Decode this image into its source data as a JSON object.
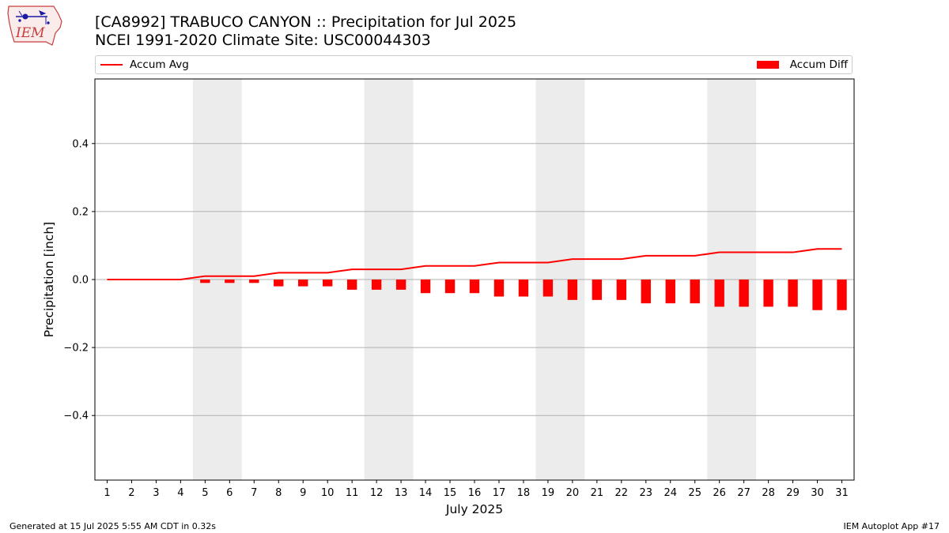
{
  "header": {
    "logo_text": "IEM",
    "title_line1": "[CA8992] TRABUCO CANYON :: Precipitation for Jul 2025",
    "title_line2": "NCEI 1991-2020 Climate Site: USC00044303"
  },
  "legend": {
    "items": [
      {
        "label": "Accum Avg",
        "kind": "line",
        "color": "#ff0000"
      },
      {
        "label": "Accum Diff",
        "kind": "bar",
        "color": "#ff0000"
      }
    ],
    "placement": "top, above plot"
  },
  "footer": {
    "left": "Generated at 15 Jul 2025 5:55 AM CDT in 0.32s",
    "right": "IEM Autoplot App #17"
  },
  "chart_data": {
    "type": "bar",
    "xlabel": "July 2025",
    "ylabel": "Precipitation [inch]",
    "x": [
      1,
      2,
      3,
      4,
      5,
      6,
      7,
      8,
      9,
      10,
      11,
      12,
      13,
      14,
      15,
      16,
      17,
      18,
      19,
      20,
      21,
      22,
      23,
      24,
      25,
      26,
      27,
      28,
      29,
      30,
      31
    ],
    "xticks": [
      "1",
      "2",
      "3",
      "4",
      "5",
      "6",
      "7",
      "8",
      "9",
      "10",
      "11",
      "12",
      "13",
      "14",
      "15",
      "16",
      "17",
      "18",
      "19",
      "20",
      "21",
      "22",
      "23",
      "24",
      "25",
      "26",
      "27",
      "28",
      "29",
      "30",
      "31"
    ],
    "xlim": [
      0.5,
      31.5
    ],
    "ylim": [
      -0.59,
      0.59
    ],
    "yticks": [
      -0.4,
      -0.2,
      0.0,
      0.2,
      0.4
    ],
    "ytick_labels": [
      "−0.4",
      "−0.2",
      "0.0",
      "0.2",
      "0.4"
    ],
    "grid": "horizontal",
    "weekend_shading": {
      "color": "#ececec",
      "ranges": [
        [
          5,
          6
        ],
        [
          12,
          13
        ],
        [
          19,
          20
        ],
        [
          26,
          27
        ]
      ]
    },
    "series": [
      {
        "name": "Accum Avg",
        "type": "line",
        "color": "#ff0000",
        "values": [
          0,
          0,
          0,
          0,
          0.01,
          0.01,
          0.01,
          0.02,
          0.02,
          0.02,
          0.03,
          0.03,
          0.03,
          0.04,
          0.04,
          0.04,
          0.05,
          0.05,
          0.05,
          0.06,
          0.06,
          0.06,
          0.07,
          0.07,
          0.07,
          0.08,
          0.08,
          0.08,
          0.08,
          0.09,
          0.09
        ]
      },
      {
        "name": "Accum Diff",
        "type": "bar",
        "color": "#ff0000",
        "values": [
          0,
          0,
          0,
          0,
          -0.01,
          -0.01,
          -0.01,
          -0.02,
          -0.02,
          -0.02,
          -0.03,
          -0.03,
          -0.03,
          -0.04,
          -0.04,
          -0.04,
          -0.05,
          -0.05,
          -0.05,
          -0.06,
          -0.06,
          -0.06,
          -0.07,
          -0.07,
          -0.07,
          -0.08,
          -0.08,
          -0.08,
          -0.08,
          -0.09,
          -0.09
        ]
      }
    ]
  }
}
